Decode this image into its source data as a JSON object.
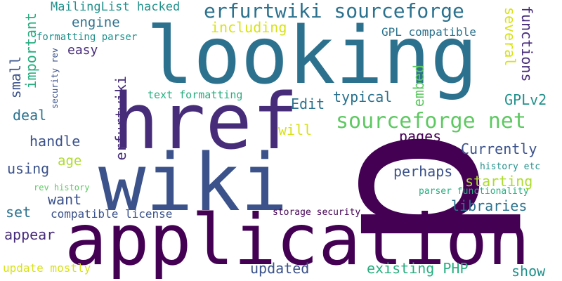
{
  "words": {
    "p": "p",
    "looking": "looking",
    "href": "href",
    "wiki": "wiki",
    "application": "application",
    "erfurtwiki_sourceforge": "erfurtwiki sourceforge",
    "sourceforge_net": "sourceforge net",
    "mailinglist_hacked": "MailingList hacked",
    "engine": "engine",
    "including": "including",
    "gpl_compatible": "GPL compatible",
    "formatting_parser": "formatting parser",
    "easy": "easy",
    "several": "several",
    "functions": "functions",
    "small": "small",
    "important": "important",
    "security_rev": "security rev",
    "erfurtwiki": "erfurtwiki",
    "text_formatting": "text formatting",
    "edit": "Edit",
    "typical": "typical",
    "embed": "embed",
    "gplv2": "GPLv2",
    "deal": "deal",
    "will": "will",
    "pages": "pages",
    "handle": "handle",
    "currently": "Currently",
    "age": "age",
    "using": "using",
    "perhaps": "perhaps",
    "history_etc": "history etc",
    "starting": "starting",
    "rev_history": "rev history",
    "parser_functionality": "parser functionality",
    "want": "want",
    "libraries": "libraries",
    "set": "set",
    "compatible_license": "compatible license",
    "storage_security": "storage security",
    "appear": "appear",
    "updated": "updated",
    "existing_php": "existing PHP",
    "update_mostly": "update mostly",
    "show": "show"
  },
  "palette": {
    "dark_purple": "#440154",
    "purple": "#472c7a",
    "indigo": "#3b528b",
    "blue": "#2c728e",
    "teal": "#21918c",
    "green_teal": "#28ae80",
    "green": "#5ec962",
    "lime": "#addc30",
    "yellow": "#d8e219"
  }
}
